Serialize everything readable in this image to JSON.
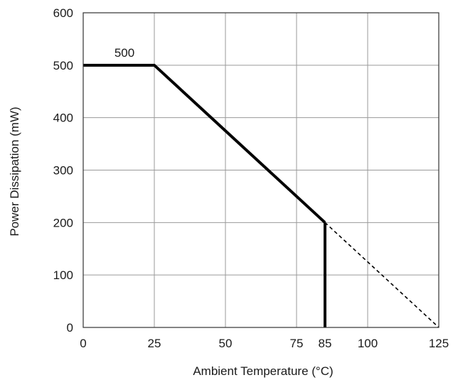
{
  "chart_data": {
    "type": "line",
    "title": "",
    "xlabel": "Ambient Temperature (°C)",
    "ylabel": "Power Dissipation (mW)",
    "xlim": [
      0,
      125
    ],
    "ylim": [
      0,
      600
    ],
    "x_ticks": [
      0,
      25,
      50,
      75,
      85,
      100,
      125
    ],
    "x_tick_labels": [
      "0",
      "25",
      "50",
      "75",
      "85",
      "100",
      "125"
    ],
    "x_gridlines": [
      25,
      50,
      75,
      100
    ],
    "y_ticks": [
      0,
      100,
      200,
      300,
      400,
      500,
      600
    ],
    "y_tick_labels": [
      "0",
      "100",
      "200",
      "300",
      "400",
      "500",
      "600"
    ],
    "grid": true,
    "series": [
      {
        "style": "solid",
        "x": [
          0,
          25,
          85
        ],
        "y": [
          500,
          500,
          200
        ]
      },
      {
        "style": "solid",
        "x": [
          85,
          85
        ],
        "y": [
          200,
          0
        ]
      },
      {
        "style": "dashed",
        "x": [
          85,
          125
        ],
        "y": [
          200,
          0
        ]
      }
    ],
    "annotations": [
      {
        "text": "500",
        "x": 12.5,
        "y": 500
      }
    ],
    "colors": {
      "line": "#000000",
      "grid": "#9a9a9a",
      "frame": "#333333"
    }
  }
}
